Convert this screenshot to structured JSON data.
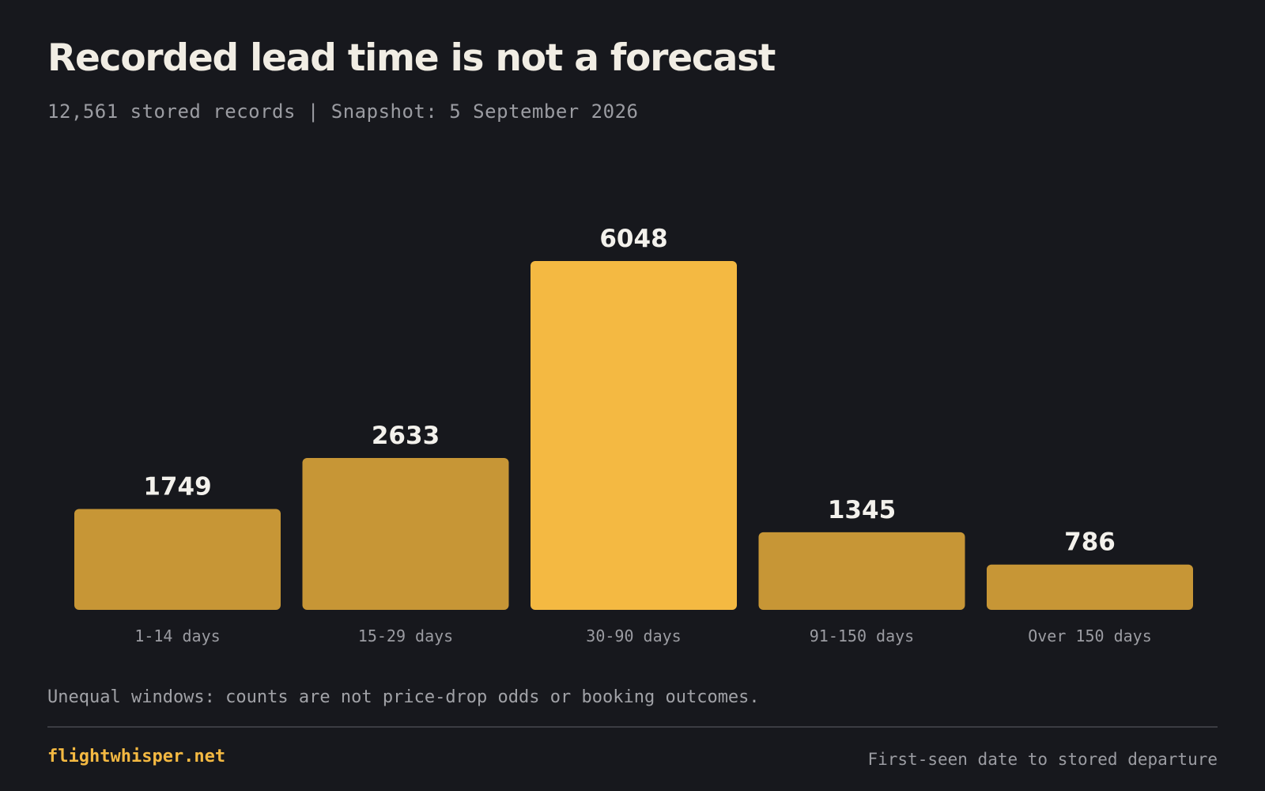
{
  "header": {
    "title": "Recorded lead time is not a forecast",
    "subtitle": "12,561 stored records | Snapshot: 5 September 2026"
  },
  "chart_data": {
    "type": "bar",
    "categories": [
      "1-14 days",
      "15-29 days",
      "30-90 days",
      "91-150 days",
      "Over 150 days"
    ],
    "values": [
      1749,
      2633,
      6048,
      1345,
      786
    ],
    "highlight_index": 2,
    "title": "Recorded lead time is not a forecast",
    "subtitle": "12,561 stored records | Snapshot: 5 September 2026",
    "xlabel": "",
    "ylabel": "",
    "ylim": [
      0,
      6048
    ],
    "grid": false,
    "legend": "none"
  },
  "colors": {
    "background": "#17181d",
    "bar": "#c79636",
    "bar_highlight": "#f4b942",
    "accent": "#f4b942"
  },
  "footer": {
    "note": "Unequal windows: counts are not price-drop odds or booking outcomes.",
    "brand": "flightwhisper.net",
    "source_note": "First-seen date to stored departure"
  }
}
